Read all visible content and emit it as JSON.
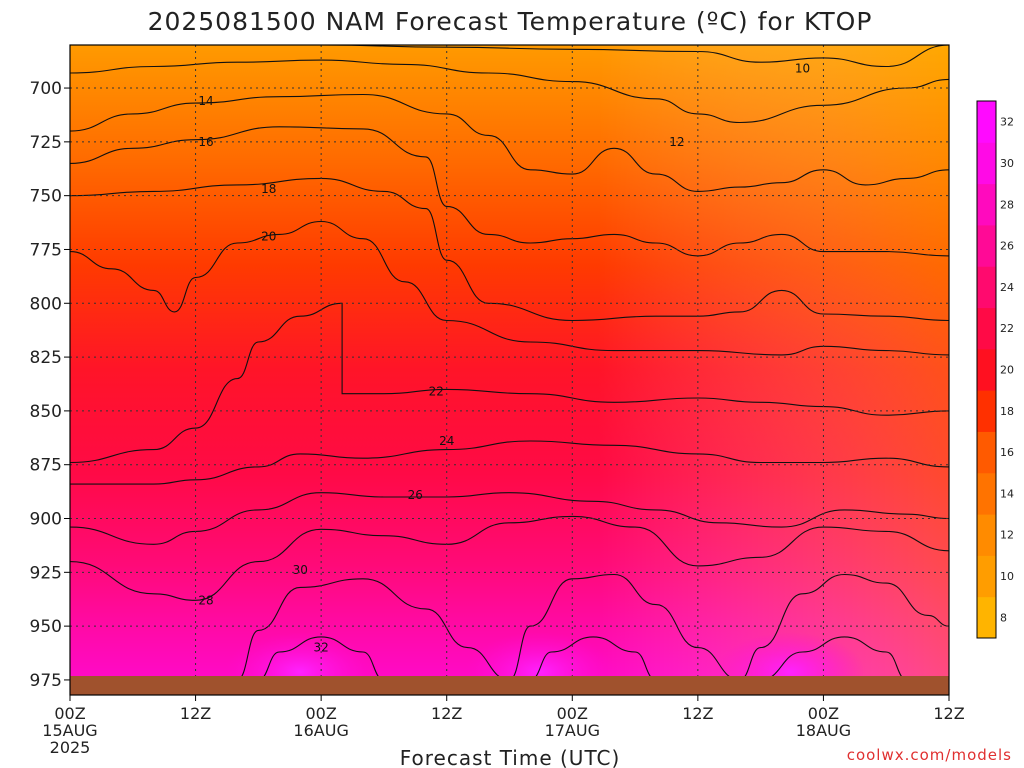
{
  "title": "2025081500 NAM Forecast Temperature (ºC) for KTOP",
  "credit": "coolwx.com/models",
  "chart_data": {
    "type": "heatmap",
    "title": "2025081500 NAM Forecast Temperature (ºC) for KTOP",
    "xlabel": "Forecast Time (UTC)",
    "ylabel": "",
    "x_range_hours": [
      0,
      84
    ],
    "y_axis": {
      "levels": [
        700,
        725,
        750,
        775,
        800,
        825,
        850,
        875,
        900,
        925,
        950,
        975
      ],
      "range": [
        680,
        982
      ],
      "inverted": true
    },
    "x_ticks": [
      {
        "hour": 0,
        "lines": [
          "00Z",
          "15AUG",
          "2025"
        ]
      },
      {
        "hour": 12,
        "lines": [
          "12Z"
        ]
      },
      {
        "hour": 24,
        "lines": [
          "00Z",
          "16AUG"
        ]
      },
      {
        "hour": 36,
        "lines": [
          "12Z"
        ]
      },
      {
        "hour": 48,
        "lines": [
          "00Z",
          "17AUG"
        ]
      },
      {
        "hour": 60,
        "lines": [
          "12Z"
        ]
      },
      {
        "hour": 72,
        "lines": [
          "00Z",
          "18AUG"
        ]
      },
      {
        "hour": 84,
        "lines": [
          "12Z"
        ]
      }
    ],
    "grid": "dotted",
    "colorbar": {
      "ticks": [
        8,
        10,
        12,
        14,
        16,
        18,
        20,
        22,
        24,
        26,
        28,
        30,
        32
      ],
      "colors": [
        "#ffb400",
        "#ff9d00",
        "#ff8b00",
        "#ff7300",
        "#ff5a00",
        "#ff3000",
        "#ff1020",
        "#ff0a46",
        "#ff0a6e",
        "#ff0a96",
        "#ff0abe",
        "#ff0ae6",
        "#ff0aff"
      ]
    },
    "contour_levels": [
      10,
      12,
      14,
      16,
      18,
      20,
      22,
      24,
      26,
      28,
      30,
      32
    ],
    "contours": [
      {
        "value": 10,
        "label": "10",
        "label_at": [
          70,
          691
        ],
        "points": [
          [
            0,
            679
          ],
          [
            12,
            680
          ],
          [
            24,
            680
          ],
          [
            36,
            681
          ],
          [
            48,
            682
          ],
          [
            60,
            683
          ],
          [
            66,
            688
          ],
          [
            72,
            686
          ],
          [
            78,
            690
          ],
          [
            84,
            680
          ]
        ]
      },
      {
        "value": 12,
        "label": "12",
        "label_at": [
          58,
          725
        ],
        "points": [
          [
            0,
            693
          ],
          [
            8,
            690
          ],
          [
            16,
            688
          ],
          [
            24,
            687
          ],
          [
            32,
            689
          ],
          [
            40,
            693
          ],
          [
            48,
            697
          ],
          [
            56,
            705
          ],
          [
            60,
            712
          ],
          [
            64,
            716
          ],
          [
            72,
            708
          ],
          [
            80,
            700
          ],
          [
            84,
            696
          ]
        ]
      },
      {
        "value": 14,
        "label": "14",
        "label_at": [
          13,
          706
        ],
        "points": [
          [
            0,
            720
          ],
          [
            6,
            712
          ],
          [
            12,
            707
          ],
          [
            20,
            704
          ],
          [
            28,
            703
          ],
          [
            36,
            712
          ],
          [
            40,
            722
          ],
          [
            44,
            738
          ],
          [
            48,
            740
          ],
          [
            52,
            728
          ],
          [
            56,
            740
          ],
          [
            60,
            748
          ],
          [
            64,
            746
          ],
          [
            68,
            744
          ],
          [
            72,
            738
          ],
          [
            76,
            745
          ],
          [
            80,
            742
          ],
          [
            84,
            738
          ]
        ]
      },
      {
        "value": 16,
        "label": "16",
        "label_at": [
          13,
          725
        ],
        "points": [
          [
            0,
            735
          ],
          [
            6,
            728
          ],
          [
            12,
            724
          ],
          [
            20,
            718
          ],
          [
            28,
            719
          ],
          [
            34,
            732
          ],
          [
            36,
            755
          ],
          [
            40,
            768
          ],
          [
            44,
            772
          ],
          [
            48,
            770
          ],
          [
            52,
            768
          ],
          [
            56,
            772
          ],
          [
            60,
            778
          ],
          [
            64,
            772
          ],
          [
            68,
            768
          ],
          [
            72,
            776
          ],
          [
            78,
            776
          ],
          [
            84,
            778
          ]
        ]
      },
      {
        "value": 18,
        "label": "18",
        "label_at": [
          19,
          747
        ],
        "points": [
          [
            0,
            750
          ],
          [
            8,
            748
          ],
          [
            16,
            745
          ],
          [
            24,
            742
          ],
          [
            30,
            748
          ],
          [
            34,
            756
          ],
          [
            36,
            780
          ],
          [
            40,
            800
          ],
          [
            48,
            808
          ],
          [
            56,
            806
          ],
          [
            60,
            806
          ],
          [
            64,
            804
          ],
          [
            68,
            794
          ],
          [
            72,
            805
          ],
          [
            78,
            806
          ],
          [
            84,
            808
          ]
        ]
      },
      {
        "value": 20,
        "label": "20",
        "label_at": [
          19,
          769
        ],
        "points": [
          [
            0,
            776
          ],
          [
            4,
            784
          ],
          [
            8,
            794
          ],
          [
            10,
            804
          ],
          [
            12,
            788
          ],
          [
            16,
            772
          ],
          [
            20,
            768
          ],
          [
            24,
            762
          ],
          [
            28,
            770
          ],
          [
            32,
            790
          ],
          [
            36,
            808
          ],
          [
            44,
            818
          ],
          [
            52,
            822
          ],
          [
            60,
            822
          ],
          [
            68,
            824
          ],
          [
            72,
            820
          ],
          [
            78,
            822
          ],
          [
            84,
            824
          ]
        ]
      },
      {
        "value": 22,
        "label": "22",
        "label_at": [
          35,
          841
        ],
        "points": [
          [
            0,
            874
          ],
          [
            8,
            868
          ],
          [
            12,
            858
          ],
          [
            16,
            835
          ],
          [
            18,
            818
          ],
          [
            22,
            806
          ],
          [
            26,
            800
          ],
          [
            26,
            842
          ],
          [
            30,
            842
          ],
          [
            36,
            840
          ],
          [
            44,
            842
          ],
          [
            52,
            846
          ],
          [
            60,
            844
          ],
          [
            66,
            846
          ],
          [
            72,
            848
          ],
          [
            78,
            852
          ],
          [
            84,
            850
          ]
        ]
      },
      {
        "value": 24,
        "label": "24",
        "label_at": [
          36,
          864
        ],
        "points": [
          [
            0,
            884
          ],
          [
            8,
            884
          ],
          [
            12,
            882
          ],
          [
            18,
            876
          ],
          [
            22,
            870
          ],
          [
            28,
            872
          ],
          [
            36,
            868
          ],
          [
            44,
            864
          ],
          [
            52,
            866
          ],
          [
            60,
            870
          ],
          [
            66,
            874
          ],
          [
            72,
            874
          ],
          [
            78,
            872
          ],
          [
            84,
            876
          ]
        ]
      },
      {
        "value": 26,
        "label": "26",
        "label_at": [
          33,
          889
        ],
        "points": [
          [
            0,
            904
          ],
          [
            8,
            912
          ],
          [
            12,
            906
          ],
          [
            18,
            896
          ],
          [
            24,
            888
          ],
          [
            30,
            890
          ],
          [
            36,
            890
          ],
          [
            42,
            888
          ],
          [
            50,
            892
          ],
          [
            56,
            896
          ],
          [
            62,
            902
          ],
          [
            68,
            904
          ],
          [
            74,
            896
          ],
          [
            80,
            898
          ],
          [
            84,
            900
          ]
        ]
      },
      {
        "value": 28,
        "label": "28",
        "label_at": [
          13,
          938
        ],
        "points": [
          [
            0,
            920
          ],
          [
            8,
            935
          ],
          [
            12,
            938
          ],
          [
            18,
            920
          ],
          [
            24,
            905
          ],
          [
            30,
            908
          ],
          [
            36,
            912
          ],
          [
            42,
            902
          ],
          [
            48,
            899
          ],
          [
            54,
            904
          ],
          [
            60,
            922
          ],
          [
            66,
            918
          ],
          [
            72,
            904
          ],
          [
            78,
            906
          ],
          [
            84,
            915
          ]
        ]
      },
      {
        "value": 30,
        "label": "30",
        "label_at": [
          22,
          924
        ],
        "points": [
          [
            16,
            975
          ],
          [
            18,
            952
          ],
          [
            22,
            932
          ],
          [
            28,
            928
          ],
          [
            34,
            942
          ],
          [
            38,
            960
          ],
          [
            42,
            975
          ],
          [
            44,
            950
          ],
          [
            48,
            928
          ],
          [
            52,
            926
          ],
          [
            56,
            940
          ],
          [
            60,
            960
          ],
          [
            64,
            975
          ],
          [
            66,
            960
          ],
          [
            70,
            935
          ],
          [
            74,
            926
          ],
          [
            78,
            930
          ],
          [
            82,
            945
          ],
          [
            84,
            950
          ]
        ]
      },
      {
        "value": 32,
        "label": "32",
        "label_at": [
          24,
          960
        ],
        "points": [
          [
            18,
            975
          ],
          [
            20,
            962
          ],
          [
            24,
            955
          ],
          [
            28,
            962
          ],
          [
            30,
            975
          ],
          [
            44,
            975
          ],
          [
            46,
            962
          ],
          [
            50,
            955
          ],
          [
            54,
            962
          ],
          [
            56,
            975
          ],
          [
            66,
            975
          ],
          [
            70,
            962
          ],
          [
            74,
            955
          ],
          [
            78,
            962
          ],
          [
            80,
            975
          ]
        ]
      }
    ]
  }
}
